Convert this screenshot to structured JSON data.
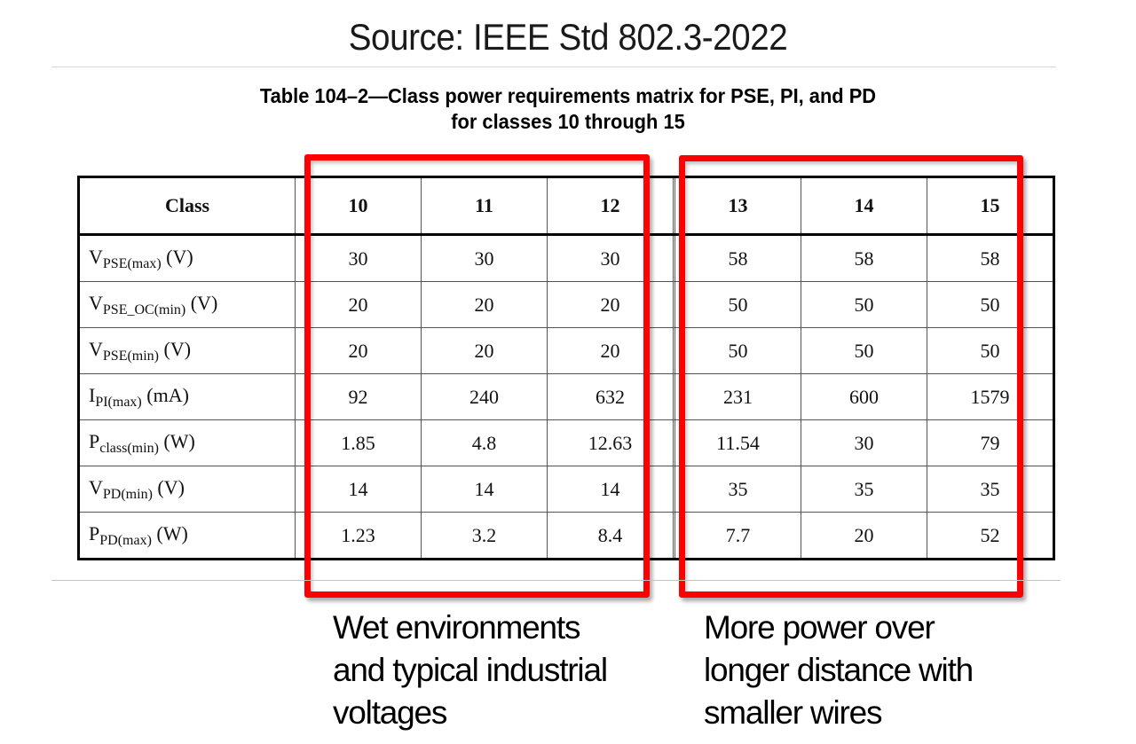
{
  "header": {
    "source": "Source: IEEE Std 802.3-2022"
  },
  "caption": {
    "line1": "Table 104–2—Class power requirements matrix for PSE, PI, and PD",
    "line2": "for classes 10 through 15"
  },
  "table": {
    "corner_label": "Class",
    "columns": [
      "10",
      "11",
      "12",
      "13",
      "14",
      "15"
    ],
    "rows": [
      {
        "symbol": "V",
        "subscript": "PSE(max)",
        "unit": " (V)",
        "values": [
          "30",
          "30",
          "30",
          "58",
          "58",
          "58"
        ]
      },
      {
        "symbol": "V",
        "subscript": "PSE_OC(min)",
        "unit": " (V)",
        "values": [
          "20",
          "20",
          "20",
          "50",
          "50",
          "50"
        ]
      },
      {
        "symbol": "V",
        "subscript": "PSE(min)",
        "unit": " (V)",
        "values": [
          "20",
          "20",
          "20",
          "50",
          "50",
          "50"
        ]
      },
      {
        "symbol": "I",
        "subscript": "PI(max)",
        "unit": " (mA)",
        "values": [
          "92",
          "240",
          "632",
          "231",
          "600",
          "1579"
        ]
      },
      {
        "symbol": "P",
        "subscript": "class(min)",
        "unit": " (W)",
        "values": [
          "1.85",
          "4.8",
          "12.63",
          "11.54",
          "30",
          "79"
        ]
      },
      {
        "symbol": "V",
        "subscript": "PD(min)",
        "unit": " (V)",
        "values": [
          "14",
          "14",
          "14",
          "35",
          "35",
          "35"
        ]
      },
      {
        "symbol": "P",
        "subscript": "PD(max)",
        "unit": " (W)",
        "values": [
          "1.23",
          "3.2",
          "8.4",
          "7.7",
          "20",
          "52"
        ]
      }
    ]
  },
  "annotations": {
    "highlight_color": "#ff0000",
    "left_group": {
      "covers_classes": [
        "10",
        "11",
        "12"
      ],
      "lines": [
        "Wet environments",
        "and typical industrial",
        "voltages"
      ]
    },
    "right_group": {
      "covers_classes": [
        "13",
        "14",
        "15"
      ],
      "lines": [
        "More power over",
        "longer distance with",
        "smaller wires"
      ]
    }
  }
}
